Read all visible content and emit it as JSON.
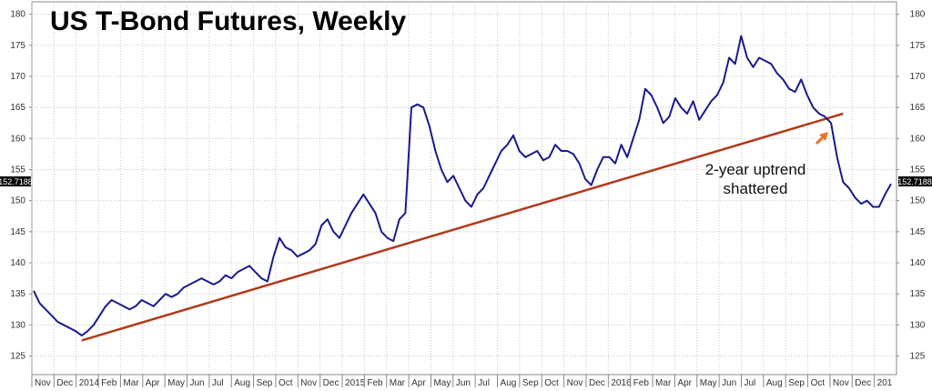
{
  "chart_data": {
    "type": "line",
    "title": "US T-Bond Futures, Weekly",
    "xlabel": "",
    "ylabel": "",
    "x_ticks": [
      "Nov",
      "Dec",
      "2014",
      "Feb",
      "Mar",
      "Apr",
      "May",
      "Jun",
      "Jul",
      "Aug",
      "Sep",
      "Oct",
      "Nov",
      "Dec",
      "2015",
      "Feb",
      "Mar",
      "Apr",
      "May",
      "Jun",
      "Jul",
      "Aug",
      "Sep",
      "Oct",
      "Nov",
      "Dec",
      "2016",
      "Feb",
      "Mar",
      "Apr",
      "May",
      "Jun",
      "Jul",
      "Aug",
      "Sep",
      "Oct",
      "Nov",
      "Dec",
      "201"
    ],
    "y_ticks": [
      125,
      130,
      135,
      140,
      145,
      150,
      155,
      160,
      165,
      170,
      175,
      180
    ],
    "ylim": [
      122,
      182
    ],
    "grid": true,
    "current_price_label": "152.7188",
    "current_price": 152.7188,
    "series": [
      {
        "color": "#1a1a8c",
        "values": [
          135.5,
          133.5,
          132.5,
          131.5,
          130.5,
          130,
          129.5,
          129,
          128.3,
          129,
          130,
          131.5,
          133,
          134,
          133.5,
          133,
          132.5,
          133,
          134,
          133.5,
          133,
          134,
          135,
          134.5,
          135,
          136,
          136.5,
          137,
          137.5,
          137,
          136.5,
          137,
          138,
          137.5,
          138.5,
          139,
          139.5,
          138.5,
          137.5,
          137,
          141,
          144,
          142.5,
          142,
          141,
          141.5,
          142,
          143,
          146,
          147,
          145,
          144,
          146,
          148,
          149.5,
          151,
          149.5,
          148,
          145,
          144,
          143.5,
          147,
          148,
          165,
          165.5,
          165,
          162,
          158,
          155,
          153,
          154,
          152,
          150,
          149,
          151,
          152,
          154,
          156,
          158,
          159,
          160.5,
          158,
          157,
          157.5,
          158,
          156.5,
          157,
          159,
          158,
          158,
          157.5,
          156,
          153.5,
          152.5,
          155,
          157,
          157,
          156,
          159,
          157,
          160,
          163,
          168,
          167,
          165,
          162.5,
          163.5,
          166.5,
          165,
          164,
          166,
          163,
          164.5,
          166,
          167,
          169,
          173,
          172,
          176.5,
          173,
          171.5,
          173,
          172.5,
          172,
          170.5,
          169.5,
          168,
          167.5,
          169.5,
          167,
          165,
          164,
          163.5,
          162.5,
          157,
          153,
          152,
          150.5,
          149.5,
          150,
          149,
          149,
          151,
          152.7
        ]
      }
    ],
    "trendline": {
      "color": "#b03a1a",
      "x_start_index": 8,
      "x_end_index": 135,
      "start_value": 127.5,
      "end_value": 164
    },
    "annotation": {
      "line1": "2-year uptrend",
      "line2": "shattered",
      "arrow_color": "#f07020"
    }
  }
}
